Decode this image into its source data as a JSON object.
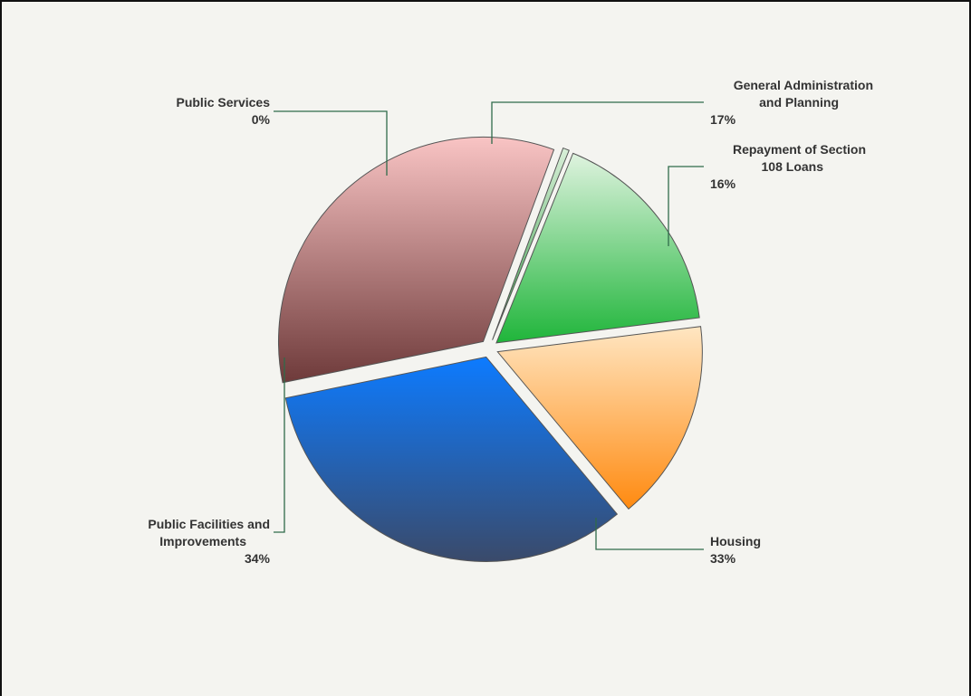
{
  "colors": {
    "background": "#f4f4f0",
    "border": "#111111",
    "leader": "#2f6b4a",
    "label": "#333333"
  },
  "chart_data": {
    "type": "pie",
    "title": "",
    "unit": "%",
    "slices": [
      {
        "key": "general",
        "lines": [
          "General Administration",
          "and Planning"
        ],
        "value": 17,
        "value_label": "17%",
        "color_light": "#dff3df",
        "color_dark": "#1fb53a"
      },
      {
        "key": "repayment",
        "lines": [
          "Repayment of Section",
          "108 Loans"
        ],
        "value": 16,
        "value_label": "16%",
        "color_light": "#ffe6c2",
        "color_dark": "#ff8a10"
      },
      {
        "key": "housing",
        "lines": [
          "Housing"
        ],
        "value": 33,
        "value_label": "33%",
        "color_light": "#0d7bff",
        "color_dark": "#3a4a6a"
      },
      {
        "key": "public-facilities",
        "lines": [
          "Public Facilities and",
          "Improvements"
        ],
        "value": 34,
        "value_label": "34%",
        "color_light": "#f9c4c4",
        "color_dark": "#6e3a3a"
      },
      {
        "key": "public-services",
        "lines": [
          "Public Services"
        ],
        "value": 0.5,
        "value_label": "0%",
        "color_light": "#d8efd8",
        "color_dark": "#3aa04a"
      }
    ]
  }
}
